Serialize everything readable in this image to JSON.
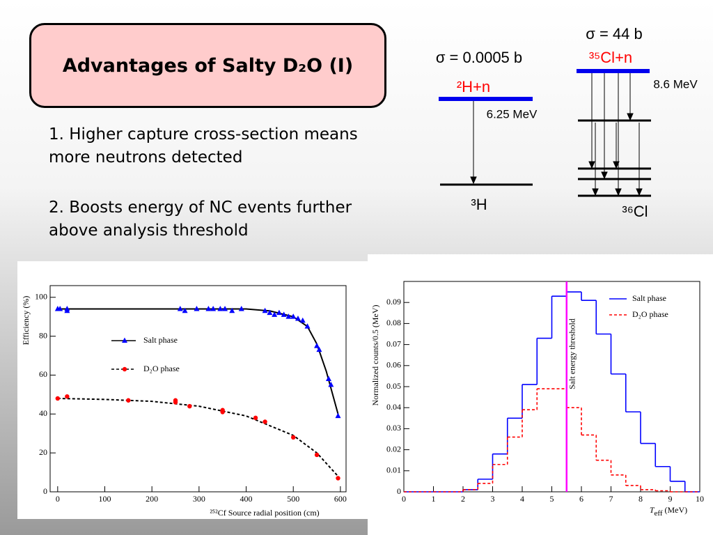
{
  "title": "Advantages of Salty D₂O (I)",
  "points": [
    "1.  Higher capture cross-section means more neutrons detected",
    "2.  Boosts energy of NC events further above analysis threshold"
  ],
  "diagram": {
    "h_sigma": "σ = 0.0005 b",
    "h_initial": "²H+n",
    "h_energy": "6.25 MeV",
    "h_final": "³H",
    "cl_sigma": "σ = 44 b",
    "cl_initial": "³⁵Cl+n",
    "cl_energy": "8.6 MeV",
    "cl_final": "³⁶Cl"
  },
  "chart_data": [
    {
      "type": "scatter",
      "xlabel": "²⁵²Cf Source radial position (cm)",
      "ylabel": "Efficiency (%)",
      "xlim": [
        -16,
        612
      ],
      "xticks": [
        0,
        100,
        200,
        300,
        400,
        500,
        600
      ],
      "ylim": [
        0,
        106
      ],
      "yticks": [
        0,
        20,
        40,
        60,
        80,
        100
      ],
      "series": [
        {
          "name": "Salt phase",
          "color": "#0000ff",
          "marker": "triangle",
          "x": [
            0,
            5,
            20,
            20,
            260,
            270,
            295,
            320,
            330,
            345,
            355,
            370,
            390,
            440,
            450,
            460,
            470,
            480,
            490,
            500,
            510,
            520,
            530,
            550,
            555,
            575,
            580,
            595
          ],
          "values": [
            94,
            94,
            94,
            93,
            94,
            93,
            94,
            94,
            94,
            94,
            94,
            93,
            94,
            93,
            92,
            91,
            92,
            91,
            90,
            90,
            89,
            88,
            85,
            75,
            73,
            58,
            55,
            39
          ]
        },
        {
          "name": "D₂O phase",
          "color": "#ff0000",
          "marker": "circle",
          "x": [
            0,
            20,
            150,
            250,
            250,
            280,
            350,
            350,
            420,
            440,
            500,
            550,
            595
          ],
          "values": [
            48,
            49,
            47,
            47,
            46,
            44,
            42,
            41,
            38,
            36,
            28,
            19,
            7
          ]
        }
      ],
      "fits": [
        {
          "color": "#000000",
          "dash": false,
          "x": [
            0,
            100,
            200,
            300,
            400,
            450,
            500,
            530,
            550,
            570,
            595
          ],
          "values": [
            94,
            94,
            94,
            94,
            94,
            93,
            90,
            85,
            76,
            62,
            40
          ]
        },
        {
          "color": "#000000",
          "dash": true,
          "x": [
            0,
            100,
            200,
            300,
            400,
            500,
            550,
            595
          ],
          "values": [
            48,
            47.5,
            46.5,
            44,
            39,
            29,
            20,
            8
          ]
        }
      ]
    },
    {
      "type": "histogram",
      "ylabel": "Normalized counts/0.5 (MeV)",
      "xlabel": {
        "symbol": "T",
        "sub": "eff",
        "unit": " (MeV)"
      },
      "bins": [
        0,
        0.5,
        1,
        1.5,
        2,
        2.5,
        3,
        3.5,
        4,
        4.5,
        5,
        5.5,
        6,
        6.5,
        7,
        7.5,
        8,
        8.5,
        9,
        9.5,
        10
      ],
      "xlim": [
        0,
        10
      ],
      "xticks": [
        0,
        1,
        2,
        3,
        4,
        5,
        6,
        7,
        8,
        9,
        10
      ],
      "ylim": [
        0,
        0.1
      ],
      "yticks": [
        0,
        0.01,
        0.02,
        0.03,
        0.04,
        0.05,
        0.06,
        0.07,
        0.08,
        0.09
      ],
      "series": [
        {
          "name": "Salt phase",
          "color": "#0000ff",
          "dash": false,
          "values": [
            0,
            0,
            0,
            0,
            0.001,
            0.006,
            0.018,
            0.035,
            0.051,
            0.073,
            0.093,
            0.095,
            0.091,
            0.075,
            0.056,
            0.038,
            0.023,
            0.012,
            0.005,
            0
          ]
        },
        {
          "name": "D₂O phase",
          "color": "#ff0000",
          "dash": true,
          "values": [
            0,
            0,
            0,
            0,
            0.001,
            0.004,
            0.013,
            0.026,
            0.039,
            0.049,
            0.049,
            0.04,
            0.027,
            0.015,
            0.008,
            0.003,
            0.001,
            0.0005,
            0,
            0
          ]
        }
      ],
      "threshold": {
        "value": 5.5,
        "label": "Salt energy threshold",
        "color": "#ff00ff"
      }
    }
  ]
}
